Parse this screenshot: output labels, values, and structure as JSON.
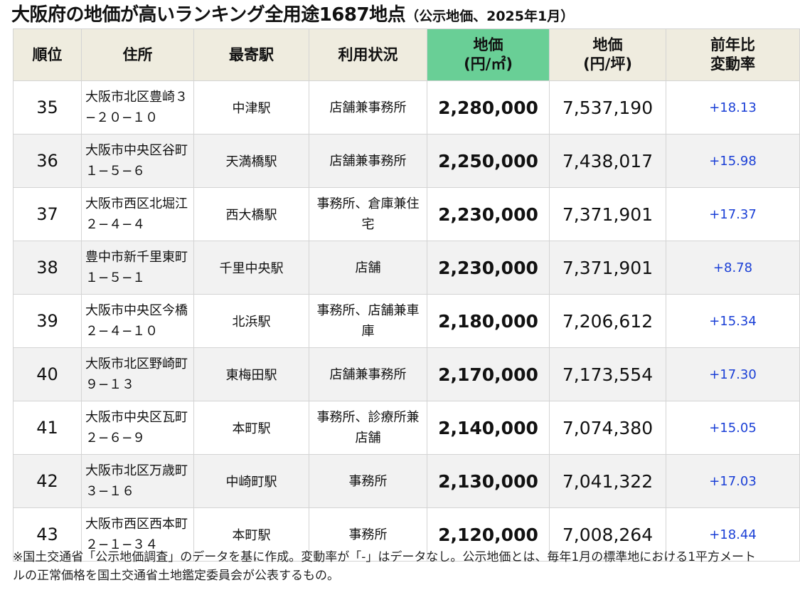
{
  "title": {
    "main": "大阪府の地価が高いランキング全用途1687地点",
    "sub": "（公示地価、2025年1月）"
  },
  "table": {
    "headers": [
      {
        "line1": "順位",
        "line2": ""
      },
      {
        "line1": "住所",
        "line2": ""
      },
      {
        "line1": "最寄駅",
        "line2": ""
      },
      {
        "line1": "利用状況",
        "line2": ""
      },
      {
        "line1": "地価",
        "line2": "(円/㎡)"
      },
      {
        "line1": "地価",
        "line2": "(円/坪)"
      },
      {
        "line1": "前年比",
        "line2": "変動率"
      }
    ],
    "rows": [
      {
        "rank": "35",
        "address": "大阪市北区豊崎３−２０−１０",
        "station": "中津駅",
        "usage": "店舗兼事務所",
        "price_sqm": "2,280,000",
        "price_tsubo": "7,537,190",
        "change": "+18.13"
      },
      {
        "rank": "36",
        "address": "大阪市中央区谷町１−５−６",
        "station": "天満橋駅",
        "usage": "店舗兼事務所",
        "price_sqm": "2,250,000",
        "price_tsubo": "7,438,017",
        "change": "+15.98"
      },
      {
        "rank": "37",
        "address": "大阪市西区北堀江２−４−４",
        "station": "西大橋駅",
        "usage": "事務所、倉庫兼住宅",
        "price_sqm": "2,230,000",
        "price_tsubo": "7,371,901",
        "change": "+17.37"
      },
      {
        "rank": "38",
        "address": "豊中市新千里東町１−５−１",
        "station": "千里中央駅",
        "usage": "店舗",
        "price_sqm": "2,230,000",
        "price_tsubo": "7,371,901",
        "change": "+8.78"
      },
      {
        "rank": "39",
        "address": "大阪市中央区今橋２−４−１０",
        "station": "北浜駅",
        "usage": "事務所、店舗兼車庫",
        "price_sqm": "2,180,000",
        "price_tsubo": "7,206,612",
        "change": "+15.34"
      },
      {
        "rank": "40",
        "address": "大阪市北区野崎町９−１３",
        "station": "東梅田駅",
        "usage": "店舗兼事務所",
        "price_sqm": "2,170,000",
        "price_tsubo": "7,173,554",
        "change": "+17.30"
      },
      {
        "rank": "41",
        "address": "大阪市中央区瓦町２−６−９",
        "station": "本町駅",
        "usage": "事務所、診療所兼店舗",
        "price_sqm": "2,140,000",
        "price_tsubo": "7,074,380",
        "change": "+15.05"
      },
      {
        "rank": "42",
        "address": "大阪市北区万歳町３−１６",
        "station": "中崎町駅",
        "usage": "事務所",
        "price_sqm": "2,130,000",
        "price_tsubo": "7,041,322",
        "change": "+17.03"
      },
      {
        "rank": "43",
        "address": "大阪市西区西本町２−１−３４",
        "station": "本町駅",
        "usage": "事務所",
        "price_sqm": "2,120,000",
        "price_tsubo": "7,008,264",
        "change": "+18.44"
      }
    ]
  },
  "footnote": "※国土交通省「公示地価調査」のデータを基に作成。変動率が「-」はデータなし。公示地価とは、毎年1月の標準地における1平方メートルの正常価格を国土交通省土地鑑定委員会が公表するもの。",
  "colors": {
    "header_bg": "#efecdf",
    "header_highlight": "#69cf96",
    "row_alt_bg": "#f2f2f2",
    "change_text": "#1a3fd6"
  }
}
